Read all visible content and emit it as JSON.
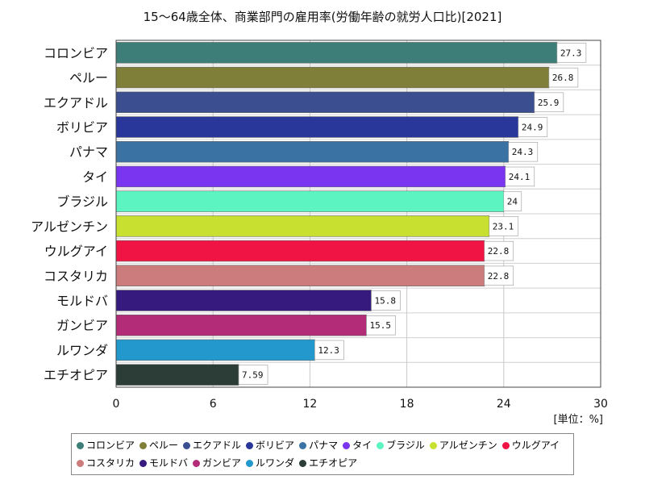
{
  "chart_data": {
    "type": "bar",
    "orientation": "horizontal",
    "title": "15〜64歳全体、商業部門の雇用率(労働年齢の就労人口比)[2021]",
    "unit_label": "[単位：%]",
    "categories": [
      "コロンビア",
      "ペルー",
      "エクアドル",
      "ボリビア",
      "パナマ",
      "タイ",
      "ブラジル",
      "アルゼンチン",
      "ウルグアイ",
      "コスタリカ",
      "モルドバ",
      "ガンビア",
      "ルワンダ",
      "エチオピア"
    ],
    "values": [
      27.3,
      26.8,
      25.9,
      24.9,
      24.3,
      24.1,
      24,
      23.1,
      22.8,
      22.8,
      15.8,
      15.5,
      12.3,
      7.59
    ],
    "value_labels": [
      "27.3",
      "26.8",
      "25.9",
      "24.9",
      "24.3",
      "24.1",
      "24",
      "23.1",
      "22.8",
      "22.8",
      "15.8",
      "15.5",
      "12.3",
      "7.59"
    ],
    "colors": [
      "#3d7f78",
      "#7f7f3a",
      "#3a4e90",
      "#2a379a",
      "#3b72a4",
      "#7a35f0",
      "#5cf5c2",
      "#c8e030",
      "#f01444",
      "#cc7c7c",
      "#361a7e",
      "#b22c78",
      "#2298cc",
      "#2c3c36"
    ],
    "xlim": [
      0,
      30
    ],
    "xticks": [
      0,
      6,
      12,
      18,
      24,
      30
    ],
    "grid": true,
    "legend_position": "bottom"
  }
}
